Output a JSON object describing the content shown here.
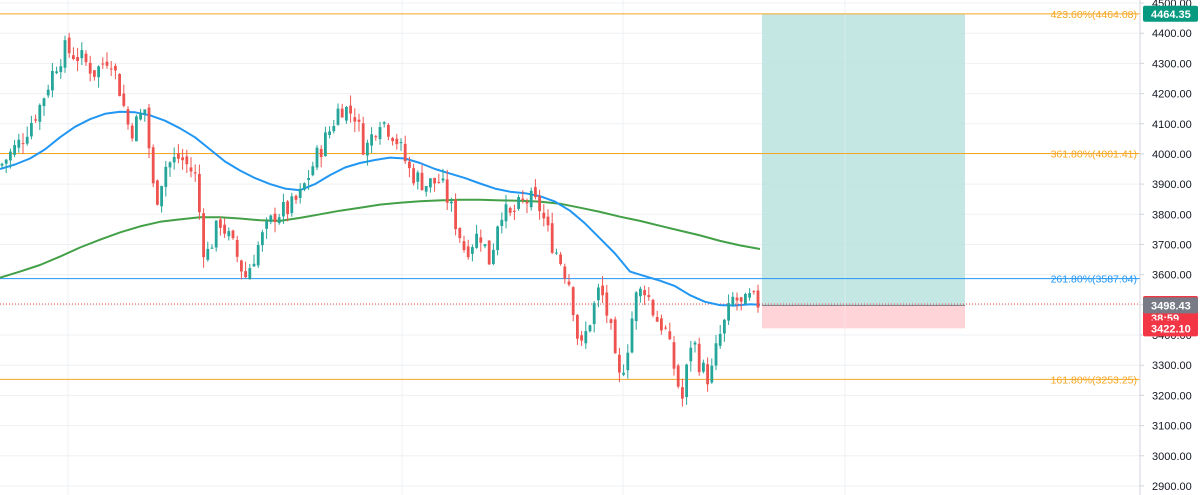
{
  "colors": {
    "up": "#26a69a",
    "down": "#ef5350",
    "grid": "#eef0f3",
    "axis_border": "#d1d4dc",
    "ma_fast": "#2196f3",
    "ma_slow": "#43a047",
    "fib_orange": "#f5a623",
    "fib_blue": "#2196f3",
    "target_zone": "#b2dfdb",
    "stop_zone": "#ffcdd2",
    "current_price_line": "#ef5350",
    "badge_green": "#089981",
    "badge_red": "#f23645",
    "badge_gray": "#787b86"
  },
  "chart_data": {
    "type": "candlestick",
    "y_range": [
      2870,
      4510
    ],
    "y_ticks": [
      "4500.00",
      "4400.00",
      "4300.00",
      "4200.00",
      "4100.00",
      "4000.00",
      "3900.00",
      "3800.00",
      "3700.00",
      "3600.00",
      "3500.00",
      "3400.00",
      "3300.00",
      "3200.00",
      "3100.00",
      "3000.00",
      "2900.00"
    ],
    "fib_levels": [
      {
        "label": "423.60%(4464.08)",
        "price": 4464.08,
        "color": "#f5a623"
      },
      {
        "label": "361.80%(4001.41)",
        "price": 4001.41,
        "color": "#f5a623"
      },
      {
        "label": "261.80%(3587.04)",
        "price": 3587.04,
        "color": "#2196f3"
      },
      {
        "label": "161.80%(3253.25)",
        "price": 3253.25,
        "color": "#f5a623"
      }
    ],
    "position": {
      "entry": 3498.43,
      "target": 4464.35,
      "stop": 3422.1
    },
    "price_badges": [
      {
        "text": "4464.35",
        "price": 4464.35,
        "color": "#089981"
      },
      {
        "text": "3502.83",
        "price": 3502.83,
        "color": "#f23645",
        "subtext": "38:59"
      },
      {
        "text": "3498.43",
        "price": 3498.43,
        "color": "#787b86"
      },
      {
        "text": "3422.10",
        "price": 3422.1,
        "color": "#f23645"
      }
    ],
    "current_price": 3502.83,
    "countdown": "38:59",
    "ma_fast_path": [
      [
        0,
        3950
      ],
      [
        15,
        3965
      ],
      [
        30,
        3985
      ],
      [
        45,
        4015
      ],
      [
        60,
        4055
      ],
      [
        75,
        4090
      ],
      [
        90,
        4115
      ],
      [
        105,
        4133
      ],
      [
        120,
        4140
      ],
      [
        135,
        4138
      ],
      [
        150,
        4128
      ],
      [
        165,
        4110
      ],
      [
        180,
        4085
      ],
      [
        195,
        4055
      ],
      [
        210,
        4015
      ],
      [
        225,
        3975
      ],
      [
        240,
        3945
      ],
      [
        255,
        3920
      ],
      [
        270,
        3900
      ],
      [
        285,
        3885
      ],
      [
        300,
        3880
      ],
      [
        315,
        3900
      ],
      [
        330,
        3930
      ],
      [
        345,
        3955
      ],
      [
        360,
        3970
      ],
      [
        375,
        3980
      ],
      [
        390,
        3988
      ],
      [
        405,
        3985
      ],
      [
        420,
        3970
      ],
      [
        435,
        3950
      ],
      [
        450,
        3935
      ],
      [
        465,
        3920
      ],
      [
        480,
        3902
      ],
      [
        495,
        3885
      ],
      [
        510,
        3875
      ],
      [
        525,
        3870
      ],
      [
        540,
        3860
      ],
      [
        555,
        3842
      ],
      [
        570,
        3812
      ],
      [
        585,
        3770
      ],
      [
        600,
        3720
      ],
      [
        615,
        3670
      ],
      [
        630,
        3610
      ],
      [
        645,
        3595
      ],
      [
        660,
        3580
      ],
      [
        675,
        3562
      ],
      [
        690,
        3532
      ],
      [
        705,
        3510
      ],
      [
        720,
        3499
      ],
      [
        735,
        3498
      ],
      [
        750,
        3502
      ],
      [
        760,
        3500
      ]
    ],
    "ma_slow_path": [
      [
        0,
        3590
      ],
      [
        20,
        3610
      ],
      [
        40,
        3632
      ],
      [
        60,
        3660
      ],
      [
        80,
        3690
      ],
      [
        100,
        3716
      ],
      [
        120,
        3740
      ],
      [
        140,
        3760
      ],
      [
        160,
        3775
      ],
      [
        180,
        3783
      ],
      [
        200,
        3790
      ],
      [
        220,
        3790
      ],
      [
        240,
        3786
      ],
      [
        260,
        3780
      ],
      [
        280,
        3778
      ],
      [
        300,
        3788
      ],
      [
        320,
        3800
      ],
      [
        340,
        3812
      ],
      [
        360,
        3822
      ],
      [
        380,
        3832
      ],
      [
        400,
        3838
      ],
      [
        420,
        3843
      ],
      [
        440,
        3846
      ],
      [
        460,
        3848
      ],
      [
        480,
        3848
      ],
      [
        500,
        3846
      ],
      [
        520,
        3845
      ],
      [
        540,
        3842
      ],
      [
        560,
        3835
      ],
      [
        580,
        3822
      ],
      [
        600,
        3808
      ],
      [
        620,
        3792
      ],
      [
        640,
        3778
      ],
      [
        660,
        3762
      ],
      [
        680,
        3746
      ],
      [
        700,
        3730
      ],
      [
        720,
        3712
      ],
      [
        740,
        3697
      ],
      [
        760,
        3685
      ]
    ],
    "candle_anchors": [
      [
        0,
        3960
      ],
      [
        20,
        4040
      ],
      [
        40,
        4160
      ],
      [
        55,
        4290
      ],
      [
        65,
        4345
      ],
      [
        80,
        4320
      ],
      [
        95,
        4270
      ],
      [
        110,
        4330
      ],
      [
        120,
        4210
      ],
      [
        130,
        4070
      ],
      [
        145,
        4150
      ],
      [
        155,
        3830
      ],
      [
        165,
        3960
      ],
      [
        180,
        3990
      ],
      [
        195,
        3930
      ],
      [
        205,
        3650
      ],
      [
        220,
        3780
      ],
      [
        235,
        3680
      ],
      [
        245,
        3590
      ],
      [
        260,
        3710
      ],
      [
        275,
        3800
      ],
      [
        290,
        3820
      ],
      [
        300,
        3860
      ],
      [
        315,
        3980
      ],
      [
        330,
        4080
      ],
      [
        340,
        4160
      ],
      [
        355,
        4130
      ],
      [
        365,
        4010
      ],
      [
        380,
        4120
      ],
      [
        395,
        4060
      ],
      [
        410,
        3940
      ],
      [
        425,
        3900
      ],
      [
        440,
        3910
      ],
      [
        450,
        3830
      ],
      [
        465,
        3680
      ],
      [
        480,
        3740
      ],
      [
        490,
        3640
      ],
      [
        500,
        3820
      ],
      [
        510,
        3790
      ],
      [
        520,
        3830
      ],
      [
        530,
        3850
      ],
      [
        540,
        3820
      ],
      [
        550,
        3720
      ],
      [
        560,
        3650
      ],
      [
        570,
        3570
      ],
      [
        580,
        3340
      ],
      [
        590,
        3450
      ],
      [
        600,
        3560
      ],
      [
        610,
        3430
      ],
      [
        618,
        3240
      ],
      [
        626,
        3330
      ],
      [
        635,
        3520
      ],
      [
        645,
        3560
      ],
      [
        655,
        3460
      ],
      [
        665,
        3420
      ],
      [
        675,
        3280
      ],
      [
        682,
        3180
      ],
      [
        692,
        3400
      ],
      [
        700,
        3300
      ],
      [
        710,
        3250
      ],
      [
        718,
        3380
      ],
      [
        726,
        3450
      ],
      [
        734,
        3530
      ],
      [
        742,
        3490
      ],
      [
        750,
        3520
      ],
      [
        760,
        3502
      ]
    ]
  }
}
